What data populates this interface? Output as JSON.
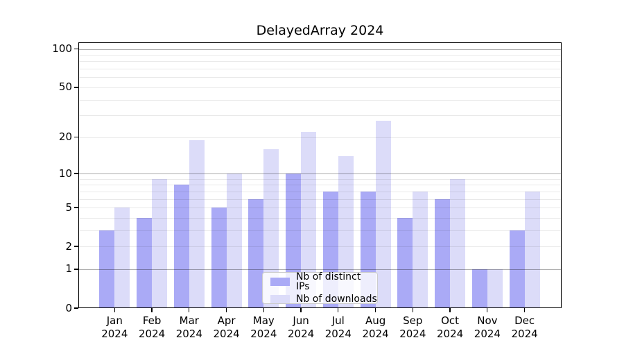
{
  "title": "DelayedArray 2024",
  "legend": {
    "items": [
      {
        "label": "Nb of distinct IPs",
        "color": "#aaaaf6"
      },
      {
        "label": "Nb of downloads",
        "color": "#dcdcf9"
      }
    ]
  },
  "y_axis": {
    "ticks": [
      0,
      1,
      2,
      5,
      10,
      20,
      50,
      100
    ],
    "major_gridlines": [
      1,
      10,
      100
    ],
    "minor_gridlines": [
      2,
      3,
      4,
      5,
      6,
      7,
      8,
      9,
      20,
      30,
      40,
      50,
      60,
      70,
      80,
      90
    ]
  },
  "chart_data": {
    "type": "bar",
    "title": "DelayedArray 2024",
    "categories": [
      "Jan 2024",
      "Feb 2024",
      "Mar 2024",
      "Apr 2024",
      "May 2024",
      "Jun 2024",
      "Jul 2024",
      "Aug 2024",
      "Sep 2024",
      "Oct 2024",
      "Nov 2024",
      "Dec 2024"
    ],
    "series": [
      {
        "name": "Nb of distinct IPs",
        "color": "#aaaaf6",
        "values": [
          3,
          4,
          8,
          5,
          6,
          10,
          7,
          7,
          4,
          6,
          1,
          3
        ]
      },
      {
        "name": "Nb of downloads",
        "color": "#dcdcf9",
        "values": [
          5,
          9,
          19,
          10,
          16,
          22,
          14,
          27,
          7,
          9,
          1,
          7
        ]
      }
    ],
    "xlabel": "",
    "ylabel": "",
    "ylim": [
      0,
      100
    ],
    "y_scale": "log10(1+x)",
    "grid": "on",
    "legend_position": "bottom-center"
  }
}
